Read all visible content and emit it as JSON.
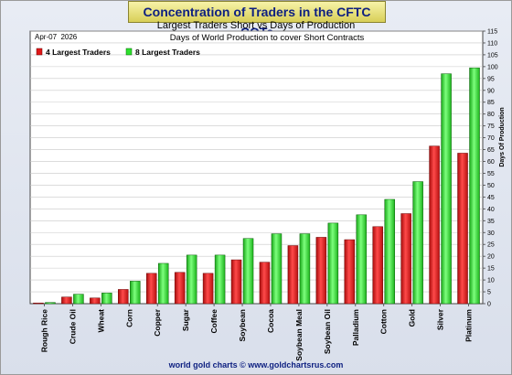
{
  "header": {
    "title": "Concentration of Traders in the CFTC COTs"
  },
  "footer": {
    "credit": "world gold charts © www.goldchartsrus.com"
  },
  "colors": {
    "series_4": "#e01818",
    "series_8": "#2ee02e",
    "plot_bg": "#ffffff"
  },
  "chart_data": {
    "type": "bar",
    "title": "Largest Traders Short vs Days of Production",
    "subtitle": "Days of World Production to cover Short Contracts",
    "date": "Apr-07  2026",
    "ylabel": "Days Of Production",
    "xlabel": "",
    "ylim": [
      0,
      115
    ],
    "yticks": [
      0,
      5,
      10,
      15,
      20,
      25,
      30,
      35,
      40,
      45,
      50,
      55,
      60,
      65,
      70,
      75,
      80,
      85,
      90,
      95,
      100,
      105,
      110,
      115
    ],
    "y_axis_side": "right",
    "grid": true,
    "legend_position": "top-left",
    "categories": [
      "Rough Rice",
      "Crude Oil",
      "Wheat",
      "Corn",
      "Copper",
      "Sugar",
      "Coffee",
      "Soybean",
      "Cocoa",
      "Soybean Meal",
      "Soybean Oil",
      "Palladium",
      "Cotton",
      "Gold",
      "Silver",
      "Platinum"
    ],
    "series": [
      {
        "name": "4 Largest Traders",
        "values": [
          0.3,
          2.8,
          2.4,
          6,
          12.8,
          13.2,
          12.8,
          18.5,
          17.5,
          24.5,
          28,
          27,
          32.5,
          38,
          66.5,
          63.5
        ]
      },
      {
        "name": "8 Largest Traders",
        "values": [
          0.5,
          4,
          4.5,
          9.5,
          17,
          20.5,
          20.5,
          27.5,
          29.5,
          29.5,
          34,
          37.5,
          44,
          51.5,
          97,
          99.5
        ]
      }
    ]
  }
}
